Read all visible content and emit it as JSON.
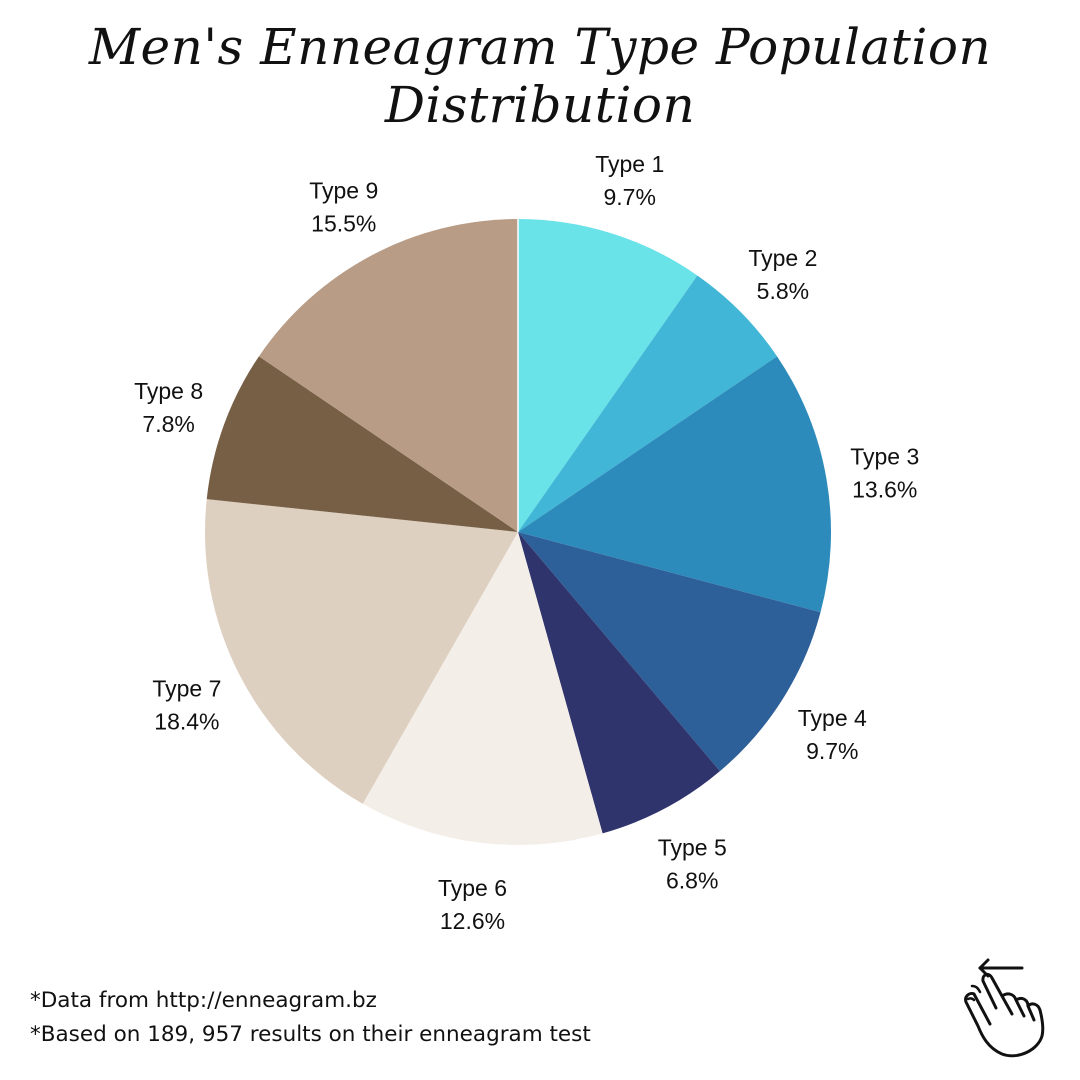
{
  "chart_data": {
    "type": "pie",
    "title": "Men's Enneagram Type Population Distribution",
    "slices": [
      {
        "label": "Type 1",
        "value": 9.7,
        "value_label": "9.7%",
        "color": "#69E2E8"
      },
      {
        "label": "Type 2",
        "value": 5.8,
        "value_label": "5.8%",
        "color": "#41B6D6"
      },
      {
        "label": "Type 3",
        "value": 13.6,
        "value_label": "13.6%",
        "color": "#2D8BBC"
      },
      {
        "label": "Type 4",
        "value": 9.7,
        "value_label": "9.7%",
        "color": "#2D5F98"
      },
      {
        "label": "Type 5",
        "value": 6.8,
        "value_label": "6.8%",
        "color": "#30346D"
      },
      {
        "label": "Type 6",
        "value": 12.6,
        "value_label": "12.6%",
        "color": "#F4EEE8"
      },
      {
        "label": "Type 7",
        "value": 18.4,
        "value_label": "18.4%",
        "color": "#DED0C0"
      },
      {
        "label": "Type 8",
        "value": 7.8,
        "value_label": "7.8%",
        "color": "#775F46"
      },
      {
        "label": "Type 9",
        "value": 15.5,
        "value_label": "15.5%",
        "color": "#B89C86"
      }
    ],
    "start_angle": "12 o'clock",
    "direction": "clockwise",
    "legend": "none"
  },
  "footnotes": {
    "source": "*Data from http://enneagram.bz",
    "basis": "*Based on 189, 957 results on their enneagram test"
  },
  "icons": {
    "swipe": "swipe-left-hand-icon"
  }
}
